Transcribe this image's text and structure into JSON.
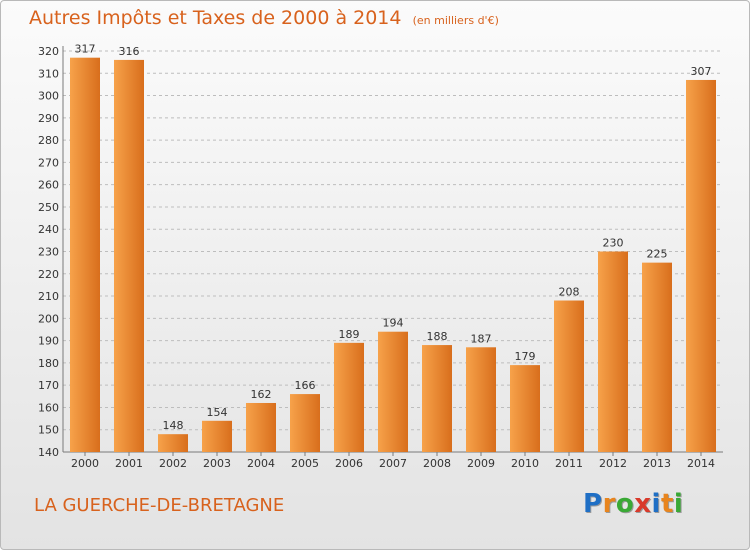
{
  "title": "Autres Impôts et Taxes de 2000 à 2014",
  "subtitle": "(en milliers d'€)",
  "commune": "LA GUERCHE-DE-BRETAGNE",
  "logo": {
    "letters": [
      "P",
      "r",
      "o",
      "x",
      "i",
      "t",
      "i"
    ],
    "colors": [
      "#1f6fc5",
      "#e8851e",
      "#3aa935",
      "#d93a2b",
      "#1f6fc5",
      "#e8851e",
      "#3aa935"
    ]
  },
  "colors": {
    "accent": "#d8621d",
    "bar_light": "#f7a24a",
    "bar_dark": "#d86e1c",
    "grid": "#bdbdbd",
    "text": "#333333"
  },
  "chart_data": {
    "type": "bar",
    "title": "Autres Impôts et Taxes de 2000 à 2014",
    "ylabel": "(en milliers d'€)",
    "xlabel": "",
    "categories": [
      "2000",
      "2001",
      "2002",
      "2003",
      "2004",
      "2005",
      "2006",
      "2007",
      "2008",
      "2009",
      "2010",
      "2011",
      "2012",
      "2013",
      "2014"
    ],
    "values": [
      317,
      316,
      148,
      154,
      162,
      166,
      189,
      194,
      188,
      187,
      179,
      208,
      230,
      225,
      307
    ],
    "ylim": [
      140,
      320
    ],
    "yticks": [
      140,
      150,
      160,
      170,
      180,
      190,
      200,
      210,
      220,
      230,
      240,
      250,
      260,
      270,
      280,
      290,
      300,
      310,
      320
    ],
    "grid": true,
    "legend": "none"
  }
}
